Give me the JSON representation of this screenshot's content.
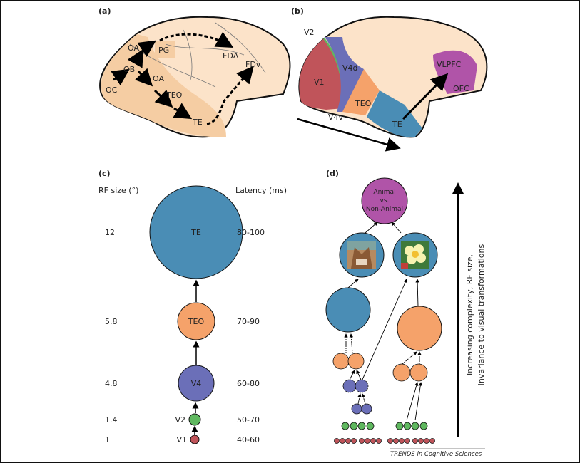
{
  "colors": {
    "brain": "#fce3c9",
    "stream": "#f5cda3",
    "v1": "#c0545a",
    "v2": "#5fb85f",
    "v4": "#6b6fb8",
    "teo": "#f5a26a",
    "te": "#4a8db5",
    "pfc": "#b054a8"
  },
  "panel_a": {
    "label": "(a)",
    "areas": [
      "OC",
      "OB",
      "OA",
      "PG",
      "OA",
      "TEO",
      "TE",
      "FDΔ",
      "FDv"
    ]
  },
  "panel_b": {
    "label": "(b)",
    "areas": [
      "V2",
      "V1",
      "V4d",
      "V4v",
      "TEO",
      "TE",
      "VLPFC",
      "OFC"
    ]
  },
  "panel_c": {
    "label": "(c)",
    "rf_header": "RF size (°)",
    "latency_header": "Latency (ms)",
    "levels": [
      {
        "area": "TE",
        "rf": "12",
        "latency": "80-100"
      },
      {
        "area": "TEO",
        "rf": "5.8",
        "latency": "70-90"
      },
      {
        "area": "V4",
        "rf": "4.8",
        "latency": "60-80"
      },
      {
        "area": "V2",
        "rf": "1.4",
        "latency": "50-70"
      },
      {
        "area": "V1",
        "rf": "1",
        "latency": "40-60"
      }
    ]
  },
  "panel_d": {
    "label": "(d)",
    "top_node": [
      "Animal",
      "vs.",
      "Non-Animal"
    ],
    "images": [
      "cat-image",
      "flower-image"
    ],
    "axis_label": [
      "Increasing complexity, RF size,",
      "invariance to visual transformations"
    ]
  },
  "credit": "TRENDS in Cognitive Sciences"
}
